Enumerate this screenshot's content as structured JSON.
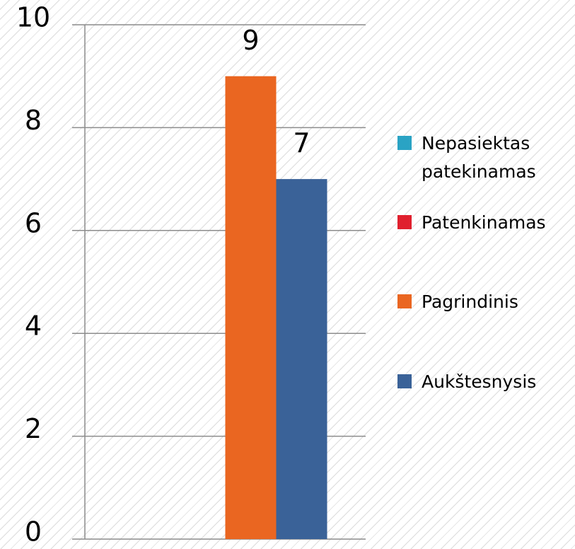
{
  "chart_data": {
    "type": "bar",
    "categories": [
      null
    ],
    "series": [
      {
        "name": "Nepasiektas patekinamas",
        "color": "#2aa3c4",
        "values": [
          0
        ]
      },
      {
        "name": "Patenkinamas",
        "color": "#e0202e",
        "values": [
          0
        ]
      },
      {
        "name": "Pagrindinis",
        "color": "#ea6621",
        "values": [
          9
        ]
      },
      {
        "name": "Aukštesnysis",
        "color": "#3a6298",
        "values": [
          7
        ]
      }
    ],
    "ylim": [
      0,
      10
    ],
    "yticks": [
      0,
      2,
      4,
      6,
      8,
      10
    ],
    "grid": true,
    "legend": "right"
  }
}
